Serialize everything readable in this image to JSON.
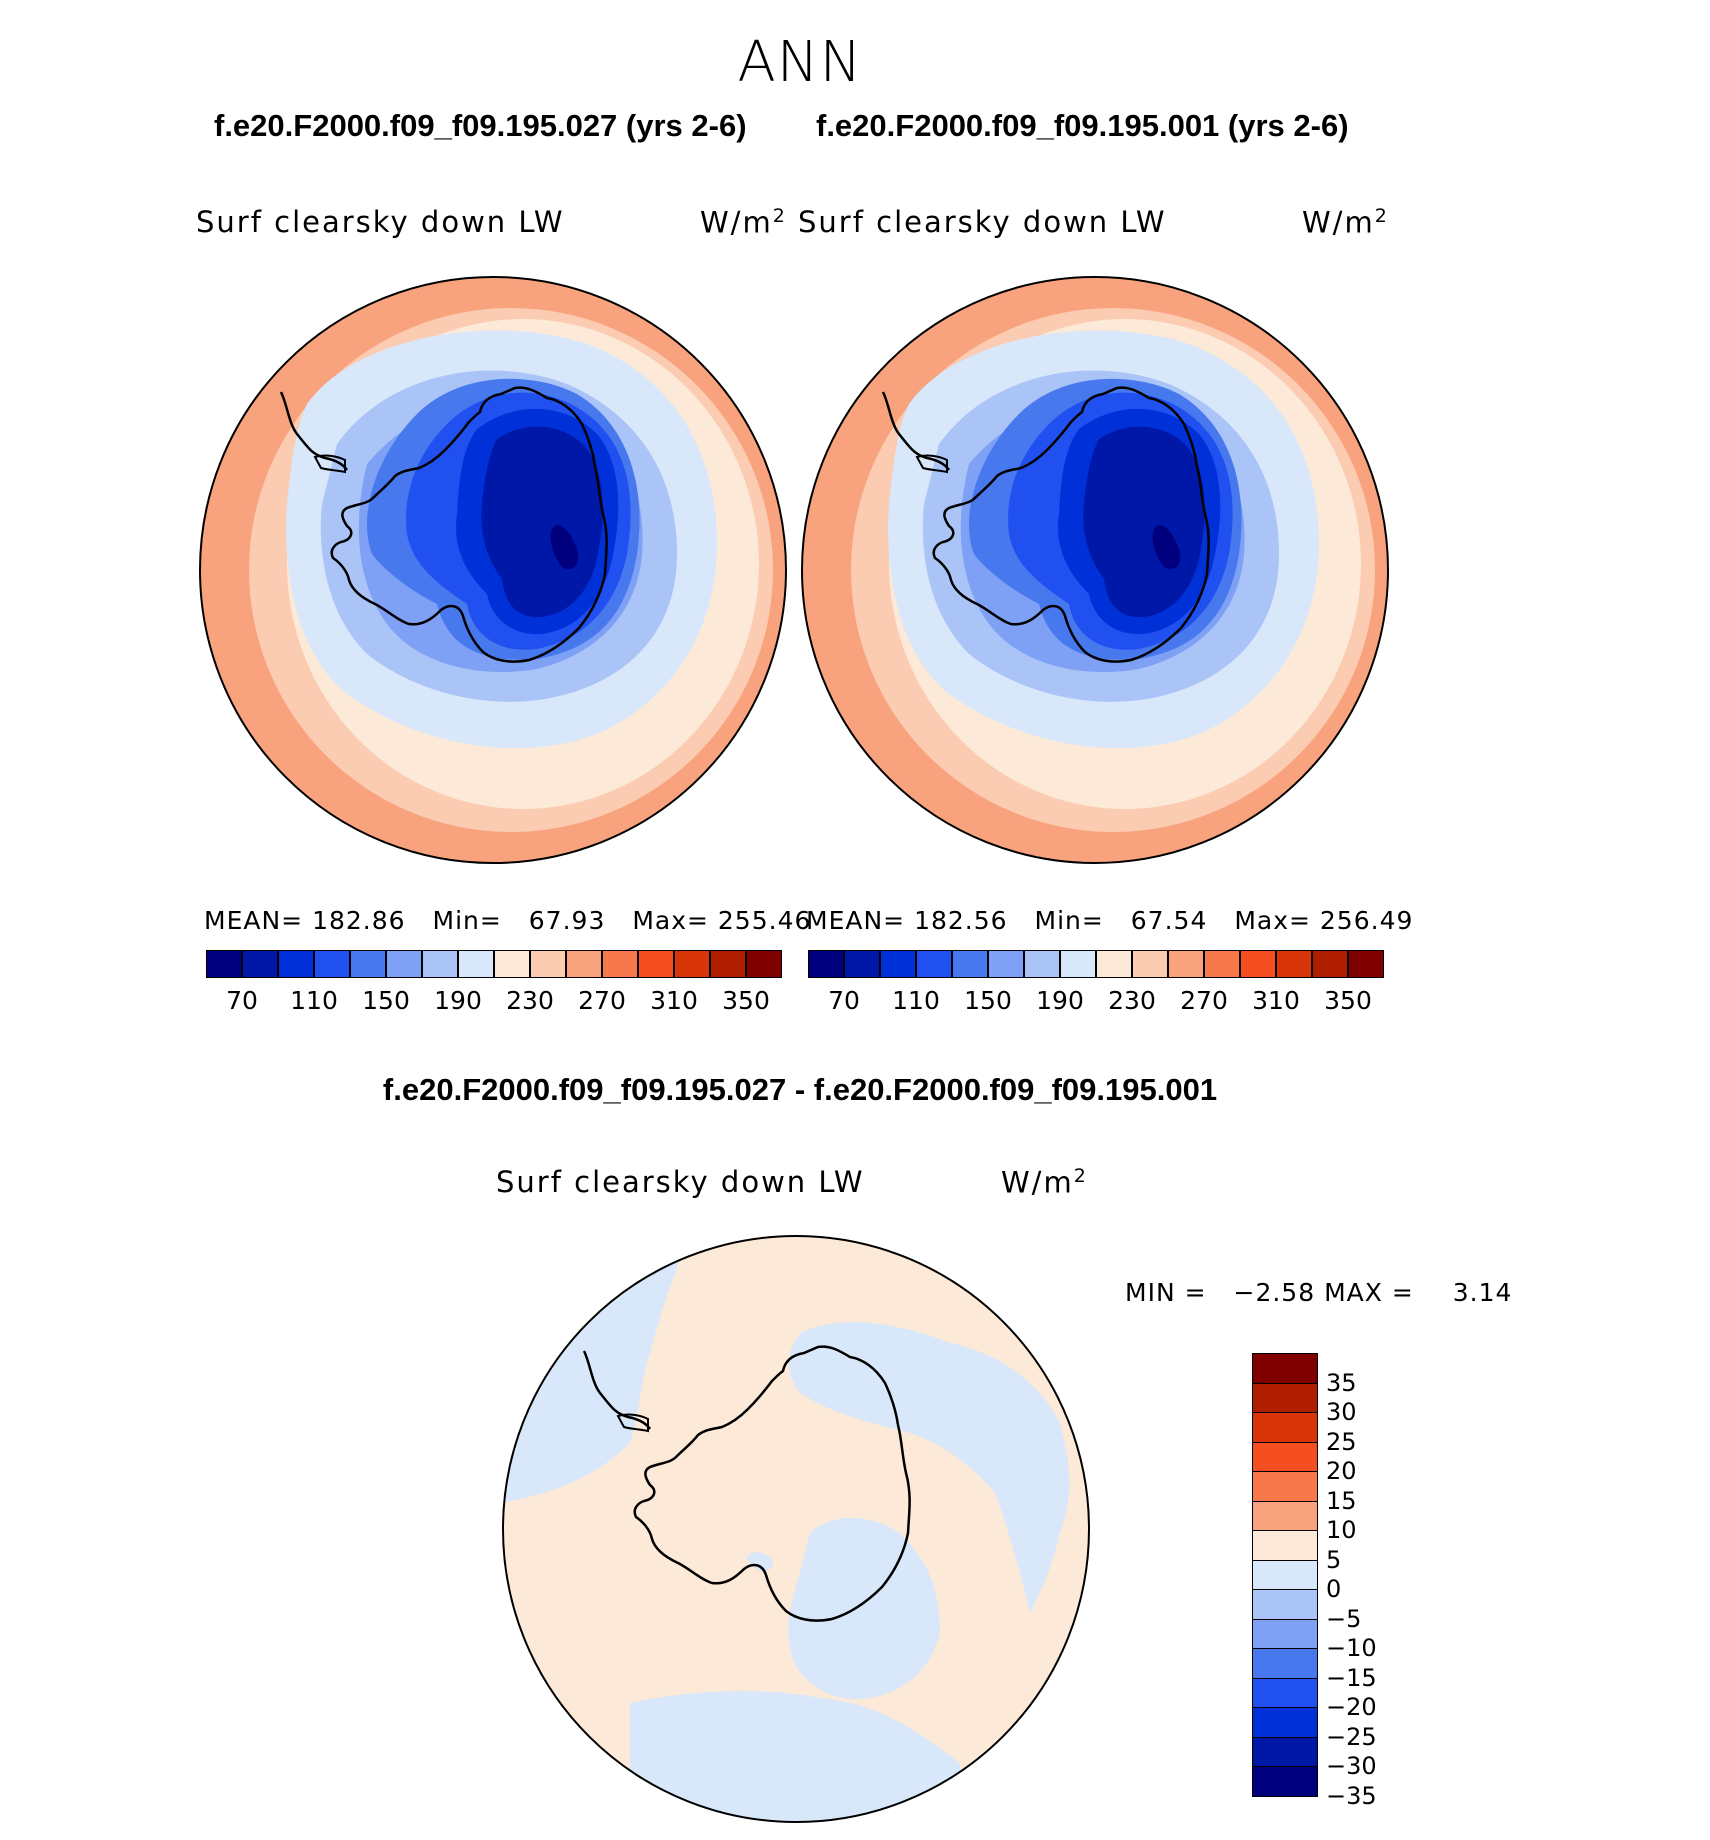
{
  "title": "ANN",
  "panels": [
    {
      "case_title": "f.e20.F2000.f09_f09.195.027 (yrs 2-6)",
      "variable": "Surf clearsky down LW",
      "units": "W/m",
      "units_exp": "2",
      "stats": {
        "mean_label": "MEAN=",
        "mean": "182.86",
        "min_label": "Min=",
        "min": "67.93",
        "max_label": "Max=",
        "max": "255.46"
      }
    },
    {
      "case_title": "f.e20.F2000.f09_f09.195.001 (yrs 2-6)",
      "variable": "Surf clearsky down LW",
      "units": "W/m",
      "units_exp": "2",
      "stats": {
        "mean_label": "MEAN=",
        "mean": "182.56",
        "min_label": "Min=",
        "min": "67.54",
        "max_label": "Max=",
        "max": "256.49"
      }
    }
  ],
  "colorbar": {
    "colors": [
      "#00007f",
      "#0018a8",
      "#0030d8",
      "#2050f0",
      "#4878ee",
      "#7ea0f5",
      "#aac4f8",
      "#d8e8fa",
      "#fde9d8",
      "#fbcbb2",
      "#f9a37e",
      "#f7784a",
      "#f54e20",
      "#d83608",
      "#b01e00",
      "#800000"
    ],
    "ticks": [
      "70",
      "110",
      "150",
      "190",
      "230",
      "270",
      "310",
      "350"
    ]
  },
  "diff": {
    "title": "f.e20.F2000.f09_f09.195.027 - f.e20.F2000.f09_f09.195.001",
    "variable": "Surf clearsky down LW",
    "units": "W/m",
    "units_exp": "2",
    "min_label": "MIN =",
    "min": "−2.58",
    "max_label": "MAX =",
    "max": "3.14",
    "colorbar": {
      "colors": [
        "#800000",
        "#b01e00",
        "#d83608",
        "#f54e20",
        "#f7784a",
        "#f9a37e",
        "#fde9d8",
        "#d8e8fa",
        "#aac4f8",
        "#7ea0f5",
        "#4878ee",
        "#2050f0",
        "#0030d8",
        "#0018a8",
        "#00007f"
      ],
      "ticks": [
        "35",
        "30",
        "25",
        "20",
        "15",
        "10",
        "5",
        "0",
        "−5",
        "−10",
        "−15",
        "−20",
        "−25",
        "−30",
        "−35"
      ]
    }
  }
}
